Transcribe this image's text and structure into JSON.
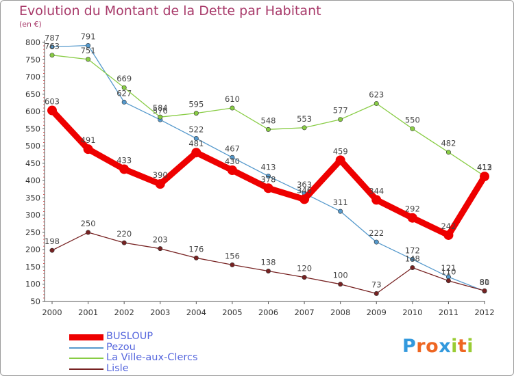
{
  "title": "Evolution du Montant de la Dette par Habitant",
  "unit": "(en €)",
  "chart_data": {
    "type": "line",
    "title": "Evolution du Montant de la Dette par Habitant",
    "ylabel": "(en €)",
    "xlabel": "",
    "x": [
      2000,
      2001,
      2002,
      2003,
      2004,
      2005,
      2006,
      2007,
      2008,
      2009,
      2010,
      2011,
      2012
    ],
    "ylim": [
      50,
      800
    ],
    "yticks": [
      50,
      100,
      150,
      200,
      250,
      300,
      350,
      400,
      450,
      500,
      550,
      600,
      650,
      700,
      750,
      800
    ],
    "grid": false,
    "legend_position": "bottom-left",
    "series": [
      {
        "name": "BUSLOUP",
        "color": "#ee0000",
        "values": [
          603,
          491,
          433,
          390,
          481,
          430,
          378,
          346,
          459,
          344,
          292,
          242,
          412
        ]
      },
      {
        "name": "Pezou",
        "color": "#5599cc",
        "values": [
          787,
          791,
          627,
          576,
          522,
          467,
          413,
          363,
          311,
          222,
          172,
          121,
          80
        ]
      },
      {
        "name": "La Ville-aux-Clercs",
        "color": "#88cc44",
        "values": [
          763,
          751,
          669,
          584,
          595,
          610,
          548,
          553,
          577,
          623,
          550,
          482,
          413
        ]
      },
      {
        "name": "Lisle",
        "color": "#772222",
        "values": [
          198,
          250,
          220,
          203,
          176,
          156,
          138,
          120,
          100,
          73,
          148,
          110,
          81
        ]
      }
    ]
  },
  "logo": {
    "letters": [
      "P",
      "r",
      "o",
      "x",
      "i",
      "t",
      "i"
    ],
    "colors": [
      "#3399dd",
      "#ee6622",
      "#ee6622",
      "#3399dd",
      "#99cc33",
      "#ee6622",
      "#99cc33"
    ]
  }
}
